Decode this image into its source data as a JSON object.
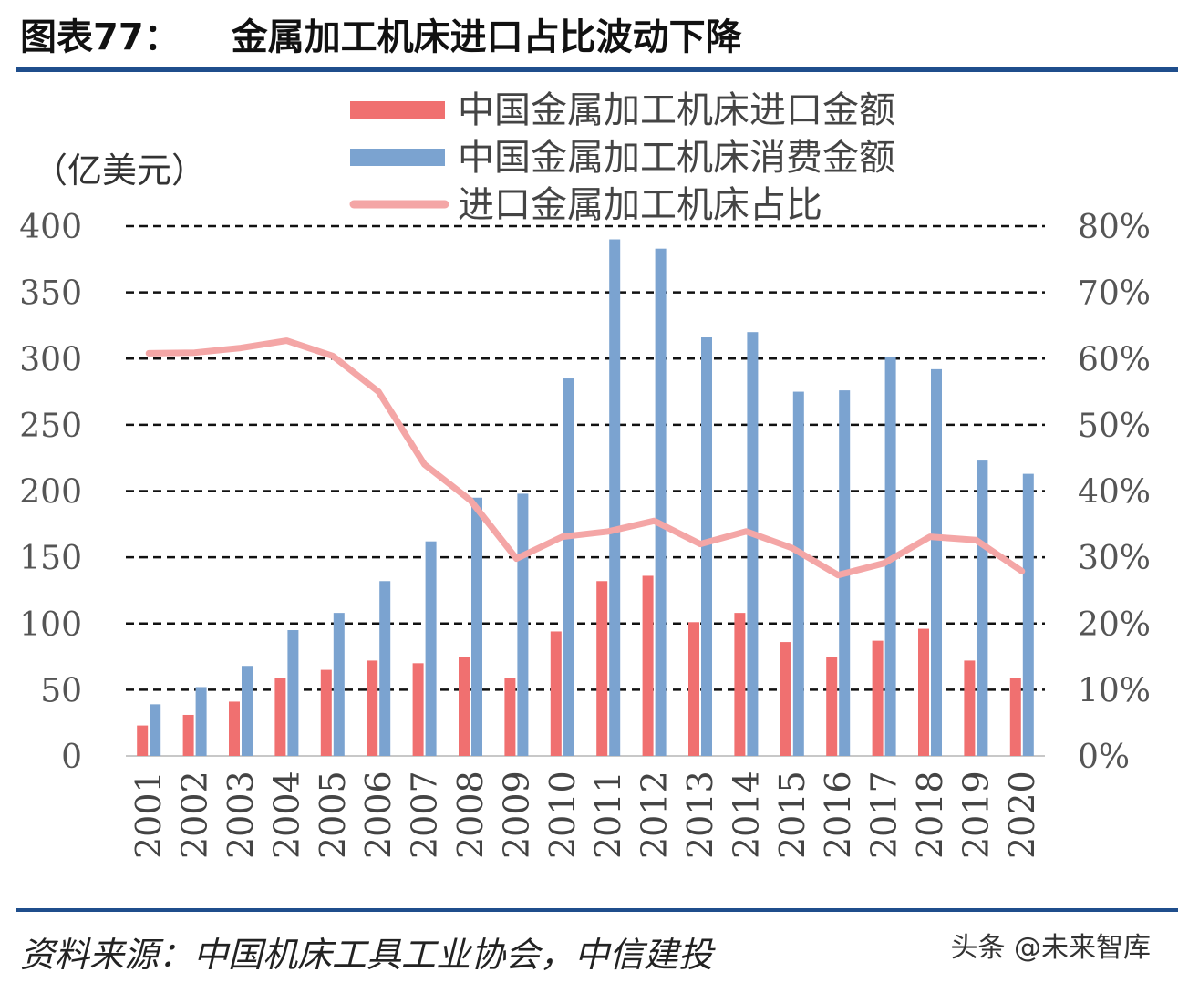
{
  "figure": {
    "label": "图表77：",
    "title": "金属加工机床进口占比波动下降",
    "source": "资料来源：中国机床工具工业协会，中信建投",
    "watermark": "头条 @未来智库"
  },
  "colors": {
    "import_bar": "#f07070",
    "consumption_bar": "#7ba3d0",
    "ratio_line": "#f4a6a6",
    "rule": "#1f4e8c",
    "grid": "#111111",
    "tick_text": "#555555"
  },
  "chart_data": {
    "type": "bar",
    "unit_label": "（亿美元）",
    "categories": [
      "2001",
      "2002",
      "2003",
      "2004",
      "2005",
      "2006",
      "2007",
      "2008",
      "2009",
      "2010",
      "2011",
      "2012",
      "2013",
      "2014",
      "2015",
      "2016",
      "2017",
      "2018",
      "2019",
      "2020"
    ],
    "y_left": {
      "min": 0,
      "max": 400,
      "ticks": [
        "0",
        "50",
        "100",
        "150",
        "200",
        "250",
        "300",
        "350",
        "400"
      ]
    },
    "y_right": {
      "min": 0,
      "max": 80,
      "ticks": [
        "0%",
        "10%",
        "20%",
        "30%",
        "40%",
        "50%",
        "60%",
        "70%",
        "80%"
      ]
    },
    "grid": true,
    "legend_position": "top",
    "series": [
      {
        "name": "中国金属加工机床进口金额",
        "type": "bar",
        "axis": "left",
        "values": [
          23,
          31,
          41,
          59,
          65,
          72,
          70,
          75,
          59,
          94,
          132,
          136,
          101,
          108,
          86,
          75,
          87,
          96,
          72,
          59
        ]
      },
      {
        "name": "中国金属加工机床消费金额",
        "type": "bar",
        "axis": "left",
        "values": [
          39,
          52,
          68,
          95,
          108,
          132,
          162,
          195,
          198,
          285,
          390,
          383,
          316,
          320,
          275,
          276,
          301,
          292,
          223,
          213
        ]
      },
      {
        "name": "进口金属加工机床占比",
        "type": "line",
        "axis": "right",
        "values": [
          60.8,
          60.9,
          61.6,
          62.7,
          60.4,
          55.0,
          44.0,
          38.6,
          29.8,
          33.1,
          33.9,
          35.5,
          32.0,
          33.9,
          31.4,
          27.3,
          29.1,
          33.1,
          32.6,
          27.9
        ]
      }
    ]
  }
}
